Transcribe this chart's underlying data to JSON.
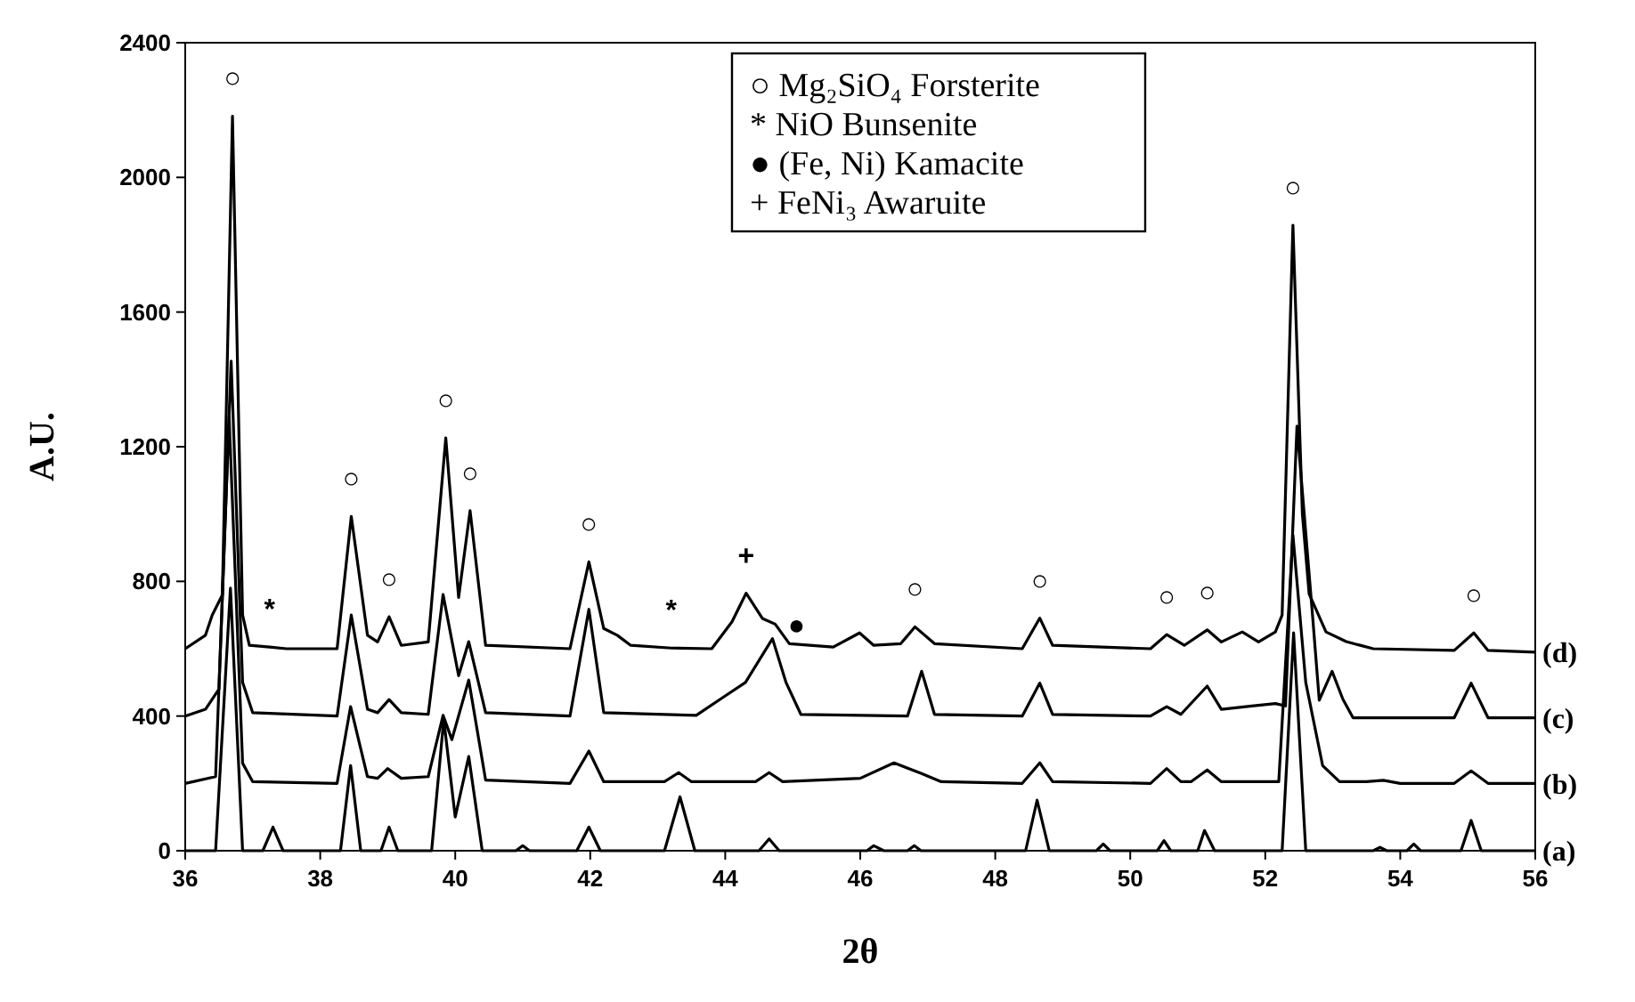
{
  "chart_data": {
    "type": "line",
    "xlabel": "2θ",
    "ylabel": "A.U.",
    "xlim": [
      36,
      56
    ],
    "xticks": [
      36,
      38,
      40,
      42,
      44,
      46,
      48,
      50,
      52,
      54,
      56
    ],
    "ylim": [
      0,
      2400
    ],
    "yticks": [
      0,
      400,
      800,
      1200,
      1600,
      2000,
      2400
    ],
    "grid": false,
    "line_style": "solid",
    "marker": "none",
    "series": [
      {
        "name": "(d)",
        "color": "#000000",
        "x": [
          36,
          36.3,
          36.4,
          36.55,
          36.7,
          36.85,
          36.95,
          37.25,
          37.5,
          38.25,
          38.46,
          38.7,
          38.85,
          39.02,
          39.2,
          39.6,
          39.86,
          40.05,
          40.22,
          40.45,
          41.7,
          41.98,
          42.2,
          42.4,
          42.6,
          43.2,
          43.8,
          44.1,
          44.31,
          44.55,
          44.74,
          44.95,
          45.6,
          45.99,
          46.2,
          46.6,
          46.81,
          47.1,
          48.4,
          48.66,
          48.85,
          50.3,
          50.54,
          50.8,
          51.14,
          51.35,
          51.66,
          51.9,
          52.15,
          52.25,
          52.41,
          52.55,
          52.65,
          52.9,
          53.2,
          53.6,
          54.8,
          55.09,
          55.3,
          56
        ],
        "values": [
          600,
          640,
          700,
          760,
          2182,
          700,
          610,
          605,
          600,
          600,
          993,
          640,
          620,
          695,
          610,
          620,
          1226,
          752,
          1010,
          610,
          600,
          858,
          660,
          640,
          610,
          602,
          600,
          680,
          765,
          690,
          673,
          615,
          605,
          647,
          610,
          615,
          665,
          615,
          600,
          691,
          610,
          600,
          642,
          610,
          656,
          620,
          650,
          620,
          650,
          700,
          1858,
          1000,
          763,
          650,
          621,
          600,
          595,
          647,
          595,
          590
        ]
      },
      {
        "name": "(c)",
        "color": "#000000",
        "x": [
          36,
          36.3,
          36.5,
          36.68,
          36.85,
          37,
          38.25,
          38.46,
          38.7,
          38.85,
          39.02,
          39.2,
          39.6,
          39.82,
          40.05,
          40.2,
          40.45,
          41.7,
          41.98,
          42.2,
          43.57,
          44.0,
          44.3,
          44.7,
          44.9,
          45.12,
          46.7,
          46.91,
          47.1,
          48.4,
          48.66,
          48.85,
          50.3,
          50.54,
          50.75,
          51.14,
          51.35,
          51.8,
          52.15,
          52.3,
          52.47,
          52.7,
          52.8,
          52.99,
          53.15,
          53.3,
          54.8,
          55.05,
          55.3,
          56
        ],
        "values": [
          400,
          420,
          480,
          1454,
          500,
          410,
          400,
          700,
          420,
          410,
          449,
          410,
          405,
          761,
          520,
          621,
          410,
          400,
          717,
          410,
          402,
          460,
          500,
          630,
          500,
          405,
          400,
          533,
          405,
          400,
          498,
          405,
          400,
          428,
          405,
          489,
          420,
          430,
          437,
          430,
          1261,
          700,
          447,
          533,
          450,
          395,
          395,
          498,
          395,
          395
        ]
      },
      {
        "name": "(b)",
        "color": "#000000",
        "x": [
          36,
          36.45,
          36.65,
          36.85,
          37,
          38.25,
          38.45,
          38.7,
          38.85,
          39.0,
          39.2,
          39.6,
          39.82,
          39.95,
          40.2,
          40.45,
          41.7,
          41.98,
          42.2,
          43.1,
          43.31,
          43.5,
          44.45,
          44.65,
          44.85,
          46.0,
          46.5,
          46.9,
          47.2,
          48.4,
          48.66,
          48.85,
          50.3,
          50.54,
          50.75,
          50.9,
          51.14,
          51.35,
          52.2,
          52.41,
          52.6,
          52.85,
          53.1,
          53.5,
          53.75,
          54.0,
          54.8,
          55.05,
          55.3,
          56
        ],
        "values": [
          200,
          220,
          1290,
          260,
          205,
          200,
          428,
          220,
          215,
          244,
          215,
          220,
          402,
          330,
          507,
          210,
          200,
          296,
          205,
          205,
          232,
          205,
          205,
          232,
          205,
          215,
          261,
          230,
          205,
          200,
          261,
          205,
          200,
          244,
          205,
          205,
          240,
          205,
          205,
          937,
          500,
          253,
          205,
          205,
          209,
          200,
          200,
          237,
          200,
          200
        ]
      },
      {
        "name": "(a)",
        "color": "#000000",
        "x": [
          36,
          36.45,
          36.67,
          36.85,
          37.15,
          37.3,
          37.45,
          38.3,
          38.45,
          38.6,
          38.9,
          39.02,
          39.15,
          39.65,
          39.83,
          40.0,
          40.2,
          40.4,
          40.9,
          41.0,
          41.1,
          41.8,
          41.98,
          42.15,
          43.1,
          43.33,
          43.55,
          44.5,
          44.65,
          44.8,
          46.1,
          46.2,
          46.35,
          46.7,
          46.8,
          46.9,
          48.45,
          48.62,
          48.8,
          49.5,
          49.6,
          49.7,
          50.4,
          50.5,
          50.6,
          51.0,
          51.1,
          51.25,
          52.25,
          52.42,
          52.6,
          53.6,
          53.7,
          53.8,
          54.1,
          54.2,
          54.3,
          54.9,
          55.05,
          55.2,
          56
        ],
        "values": [
          0,
          0,
          780,
          0,
          0,
          70,
          0,
          0,
          253,
          0,
          0,
          70,
          0,
          0,
          390,
          100,
          280,
          0,
          0,
          15,
          0,
          0,
          70,
          0,
          0,
          160,
          0,
          0,
          35,
          0,
          0,
          15,
          0,
          0,
          15,
          0,
          0,
          150,
          0,
          0,
          20,
          0,
          0,
          30,
          0,
          0,
          60,
          0,
          0,
          647,
          0,
          0,
          10,
          0,
          0,
          20,
          0,
          0,
          90,
          0,
          0
        ]
      }
    ],
    "annotations": [
      "○ Mg₂SiO₄ Forsterite",
      "* NiO Bunsenite",
      "● (Fe, Ni) Kamacite",
      "+ FeNi₃ Awaruite",
      {
        "text": "○",
        "x": 36.7,
        "y": 2182
      },
      {
        "text": "○",
        "x": 38.46,
        "y": 993
      },
      {
        "text": "○",
        "x": 39.02,
        "y": 695
      },
      {
        "text": "○",
        "x": 39.86,
        "y": 1226
      },
      {
        "text": "○",
        "x": 40.22,
        "y": 1010
      },
      {
        "text": "○",
        "x": 41.98,
        "y": 858
      },
      {
        "text": "○",
        "x": 46.81,
        "y": 665
      },
      {
        "text": "○",
        "x": 48.66,
        "y": 691
      },
      {
        "text": "○",
        "x": 50.54,
        "y": 642
      },
      {
        "text": "○",
        "x": 51.14,
        "y": 656
      },
      {
        "text": "○",
        "x": 52.41,
        "y": 1858
      },
      {
        "text": "○",
        "x": 55.09,
        "y": 647
      },
      {
        "text": "*",
        "x": 37.25,
        "y": 605
      },
      {
        "text": "*",
        "x": 43.2,
        "y": 602
      },
      {
        "text": "+",
        "x": 44.31,
        "y": 765
      },
      {
        "text": "●",
        "x": 44.74,
        "y": 673
      }
    ]
  }
}
